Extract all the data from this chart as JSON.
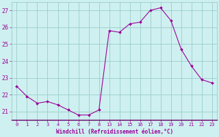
{
  "x": [
    0,
    1,
    2,
    3,
    4,
    5,
    6,
    7,
    8,
    13,
    14,
    15,
    16,
    17,
    18,
    19,
    20,
    21,
    22,
    23
  ],
  "y": [
    22.5,
    21.9,
    21.5,
    21.6,
    21.4,
    21.1,
    20.8,
    20.8,
    21.1,
    25.8,
    25.7,
    26.2,
    26.3,
    27.0,
    27.15,
    26.4,
    24.7,
    23.7,
    22.9,
    22.7
  ],
  "line_color": "#990099",
  "marker_color": "#990099",
  "bg_color": "#cff0f0",
  "grid_color": "#99cccc",
  "tick_label_color": "#990099",
  "xlabel": "Windchill (Refroidissement éolien,°C)",
  "xlabel_color": "#990099",
  "ylim_min": 20.5,
  "ylim_max": 27.5,
  "yticks": [
    21,
    22,
    23,
    24,
    25,
    26,
    27
  ],
  "xtick_labels": [
    "0",
    "1",
    "2",
    "3",
    "4",
    "5",
    "6",
    "7",
    "8",
    "13",
    "14",
    "15",
    "16",
    "17",
    "18",
    "19",
    "20",
    "21",
    "22",
    "23"
  ],
  "figwidth": 3.2,
  "figheight": 2.0,
  "dpi": 100
}
